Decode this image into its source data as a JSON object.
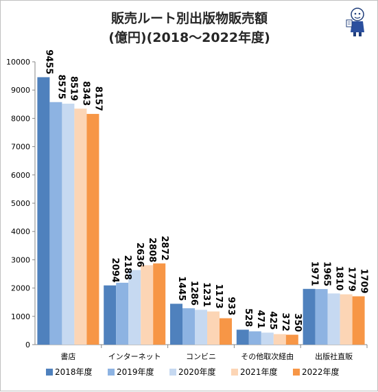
{
  "chart_data": {
    "type": "bar",
    "title": "販売ルート別出版物販売額",
    "subtitle": "(億円)(2018〜2022年度)",
    "categories": [
      "書店",
      "インターネット",
      "コンビニ",
      "その他取次経由",
      "出版社直販"
    ],
    "series": [
      {
        "name": "2018年度",
        "color": "#4f81bd",
        "values": [
          9455,
          2094,
          1445,
          528,
          1971
        ]
      },
      {
        "name": "2019年度",
        "color": "#8db3e2",
        "values": [
          8575,
          2188,
          1286,
          471,
          1965
        ]
      },
      {
        "name": "2020年度",
        "color": "#c6d9f1",
        "values": [
          8519,
          2636,
          1231,
          425,
          1810
        ]
      },
      {
        "name": "2021年度",
        "color": "#fcd5b5",
        "values": [
          8343,
          2808,
          1173,
          372,
          1779
        ]
      },
      {
        "name": "2022年度",
        "color": "#f79646",
        "values": [
          8157,
          2872,
          933,
          350,
          1709
        ]
      }
    ],
    "yticks": [
      0,
      1000,
      2000,
      3000,
      4000,
      5000,
      6000,
      7000,
      8000,
      9000,
      10000
    ],
    "ylim": [
      0,
      10000
    ],
    "grid": false,
    "legend": "bottom"
  }
}
